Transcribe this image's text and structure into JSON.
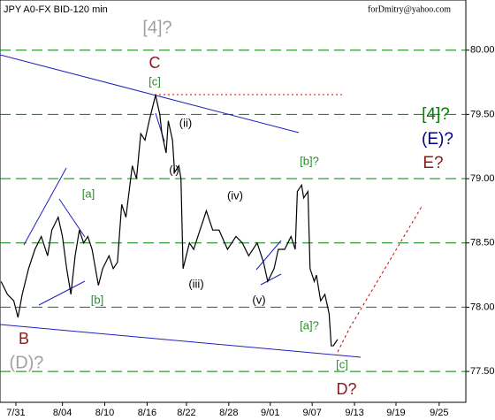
{
  "chart_data": {
    "type": "line",
    "title": "JPY A0-FX BID-120 min",
    "subtitle": "forDmitry@yahoo.com",
    "x": [
      -0.35,
      -0.2,
      -0.05,
      0.05,
      0.15,
      0.3,
      0.45,
      0.6,
      0.75,
      0.85,
      1.0,
      1.1,
      1.2,
      1.3,
      1.4,
      1.5,
      1.6,
      1.7,
      1.8,
      1.95,
      2.05,
      2.2,
      2.3,
      2.4,
      2.5,
      2.6,
      2.75,
      2.85,
      2.95,
      3.05,
      3.15,
      3.3,
      3.4,
      3.45,
      3.55,
      3.6,
      3.7,
      3.75,
      3.85,
      3.9,
      3.95,
      4.1,
      4.2,
      4.3,
      4.5,
      4.65,
      4.8,
      5.0,
      5.2,
      5.35,
      5.5,
      5.7,
      5.85,
      5.95,
      6.1,
      6.2,
      6.35,
      6.5,
      6.6,
      6.65,
      6.75,
      6.8,
      6.9,
      6.95,
      7.05,
      7.1,
      7.2,
      7.3,
      7.4,
      7.45,
      7.5,
      7.6
    ],
    "series": [
      {
        "name": "JPY",
        "color": "#000000",
        "values": [
          78.2,
          78.1,
          78.05,
          77.92,
          78.1,
          78.3,
          78.45,
          78.55,
          78.4,
          78.6,
          78.7,
          78.55,
          78.3,
          78.1,
          78.4,
          78.6,
          78.5,
          78.55,
          78.45,
          78.17,
          78.3,
          78.4,
          78.3,
          78.35,
          78.8,
          78.7,
          79.1,
          79.0,
          79.35,
          79.3,
          79.45,
          79.65,
          79.5,
          79.35,
          79.2,
          79.45,
          79.3,
          79.05,
          79.1,
          79.0,
          78.3,
          78.5,
          78.45,
          78.55,
          78.75,
          78.6,
          78.6,
          78.45,
          78.55,
          78.5,
          78.4,
          78.5,
          78.35,
          78.2,
          78.3,
          78.45,
          78.45,
          78.55,
          78.45,
          78.9,
          78.95,
          78.85,
          78.9,
          78.3,
          78.2,
          78.25,
          78.05,
          78.1,
          77.95,
          77.7,
          77.7,
          77.75
        ]
      }
    ],
    "xlim": [
      -0.375,
      10.63
    ],
    "xticks": [
      {
        "value": 0,
        "label": "7/31"
      },
      {
        "value": 1.1,
        "label": "8/04"
      },
      {
        "value": 2.1,
        "label": "8/10"
      },
      {
        "value": 3.1,
        "label": "8/16"
      },
      {
        "value": 4.03,
        "label": "8/22"
      },
      {
        "value": 5.03,
        "label": "8/28"
      },
      {
        "value": 6.01,
        "label": "9/01"
      },
      {
        "value": 7.0,
        "label": "9/07"
      },
      {
        "value": 8.0,
        "label": "9/13"
      },
      {
        "value": 8.98,
        "label": "9/19"
      },
      {
        "value": 10.0,
        "label": "9/25"
      }
    ],
    "ylim": [
      77.26,
      80.39
    ],
    "yticks": [
      {
        "value": 77.5,
        "label": "77.50"
      },
      {
        "value": 78,
        "label": "78.00"
      },
      {
        "value": 78.5,
        "label": "78.50"
      },
      {
        "value": 79,
        "label": "79.00"
      },
      {
        "value": 79.5,
        "label": "79.50"
      },
      {
        "value": 80,
        "label": "80.00"
      }
    ],
    "grid": true,
    "grid_color": "#008000",
    "annotations": [
      {
        "text": "[4]?",
        "color": "#a0a0a0"
      },
      {
        "text": "C",
        "color": "#8b1a1a"
      },
      {
        "text": "[c]",
        "color": "#2e8b2e"
      },
      {
        "text": "(ii)",
        "color": "#000000"
      },
      {
        "text": "(i)",
        "color": "#000000"
      },
      {
        "text": "[b]?",
        "color": "#2e8b2e"
      },
      {
        "text": "(iv)",
        "color": "#000000"
      },
      {
        "text": "[a]",
        "color": "#2e8b2e"
      },
      {
        "text": "[b]",
        "color": "#2e8b2e"
      },
      {
        "text": "(iii)",
        "color": "#000000"
      },
      {
        "text": "(v)",
        "color": "#000000"
      },
      {
        "text": "[a]?",
        "color": "#2e8b2e"
      },
      {
        "text": "[c]",
        "color": "#2e8b2e"
      },
      {
        "text": "D?",
        "color": "#8b1a1a"
      },
      {
        "text": "B",
        "color": "#8b1a1a"
      },
      {
        "text": "(D)?",
        "color": "#a0a0a0"
      },
      {
        "text": "[4]?",
        "color": "#008000"
      },
      {
        "text": "(E)?",
        "color": "#00008b"
      },
      {
        "text": "E?",
        "color": "#8b1a1a"
      }
    ]
  }
}
